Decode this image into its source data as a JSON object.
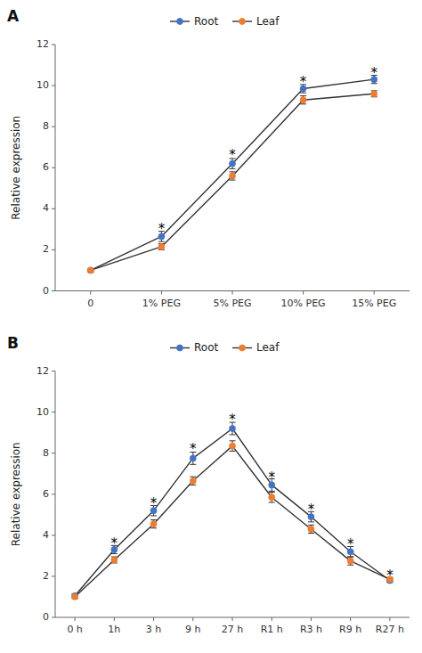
{
  "chart_data": [
    {
      "type": "line",
      "title": "A",
      "categories": [
        "0",
        "1% PEG",
        "5% PEG",
        "10% PEG",
        "15% PEG"
      ],
      "series": [
        {
          "name": "Root",
          "color": "#4472c4",
          "marker": "circle",
          "values": [
            1.0,
            2.65,
            6.2,
            9.85,
            10.3
          ],
          "errors": [
            0.08,
            0.25,
            0.25,
            0.2,
            0.2
          ]
        },
        {
          "name": "Leaf",
          "color": "#ed7d31",
          "marker": "circle",
          "values": [
            1.0,
            2.15,
            5.6,
            9.3,
            9.6
          ],
          "errors": [
            0.08,
            0.15,
            0.2,
            0.2,
            0.15
          ]
        }
      ],
      "annotations": [
        {
          "text": "*",
          "x": "1% PEG",
          "y": 3.15
        },
        {
          "text": "*",
          "x": "5% PEG",
          "y": 6.75
        },
        {
          "text": "*",
          "x": "10% PEG",
          "y": 10.3
        },
        {
          "text": "*",
          "x": "15% PEG",
          "y": 10.75
        }
      ],
      "y_label": "Relative expression",
      "ylim": [
        0,
        12
      ],
      "yticks": [
        0,
        2,
        4,
        6,
        8,
        10,
        12
      ],
      "grid": false,
      "legend": "top"
    },
    {
      "type": "line",
      "title": "B",
      "categories": [
        "0 h",
        "1h",
        "3 h",
        "9 h",
        "27 h",
        "R1 h",
        "R3 h",
        "R9 h",
        "R27 h"
      ],
      "series": [
        {
          "name": "Root",
          "color": "#4472c4",
          "marker": "circle",
          "values": [
            1.05,
            3.3,
            5.2,
            7.75,
            9.2,
            6.45,
            4.9,
            3.2,
            1.8
          ],
          "errors": [
            0.1,
            0.2,
            0.25,
            0.3,
            0.3,
            0.3,
            0.25,
            0.25,
            0.1
          ]
        },
        {
          "name": "Leaf",
          "color": "#ed7d31",
          "marker": "circle",
          "values": [
            1.0,
            2.8,
            4.55,
            6.65,
            8.35,
            5.85,
            4.3,
            2.75,
            1.85
          ],
          "errors": [
            0.08,
            0.15,
            0.2,
            0.2,
            0.25,
            0.25,
            0.2,
            0.2,
            0.1
          ]
        }
      ],
      "annotations": [
        {
          "text": "*",
          "x": "1h",
          "y": 3.75
        },
        {
          "text": "*",
          "x": "3 h",
          "y": 5.7
        },
        {
          "text": "*",
          "x": "9 h",
          "y": 8.35
        },
        {
          "text": "*",
          "x": "27 h",
          "y": 9.75
        },
        {
          "text": "*",
          "x": "R1 h",
          "y": 6.95
        },
        {
          "text": "*",
          "x": "R3 h",
          "y": 5.4
        },
        {
          "text": "*",
          "x": "R9 h",
          "y": 3.7
        },
        {
          "text": "*",
          "x": "R27 h",
          "y": 2.15
        }
      ],
      "y_label": "Relative expression",
      "ylim": [
        0,
        12
      ],
      "yticks": [
        0,
        2,
        4,
        6,
        8,
        10,
        12
      ],
      "grid": false,
      "legend": "top"
    }
  ]
}
